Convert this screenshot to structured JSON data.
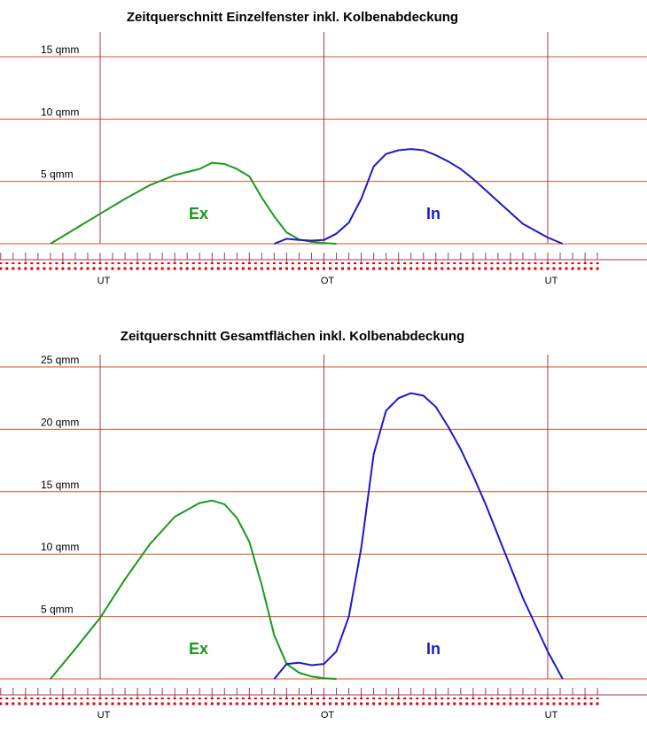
{
  "colors": {
    "grid_h": "#d9531f",
    "grid_v": "#a03a58",
    "axis_ticks": "#a03a58",
    "dots": "#e00000",
    "ex": "#1a9a1a",
    "in": "#1a1acc"
  },
  "chart_data": [
    {
      "type": "line",
      "title": "Zeitquerschnitt Einzelfenster inkl. Kolbenabdeckung",
      "ylim": [
        0,
        15
      ],
      "y_ticks": [
        {
          "value": 5,
          "label": "5 qmm"
        },
        {
          "value": 10,
          "label": "10 qmm"
        },
        {
          "value": 15,
          "label": "15 qmm"
        }
      ],
      "xlim": [
        -20,
        360
      ],
      "x_ticks": [
        {
          "value": 0,
          "label": "UT"
        },
        {
          "value": 180,
          "label": "OT"
        },
        {
          "value": 360,
          "label": "UT"
        }
      ],
      "series": [
        {
          "name": "Ex",
          "color": "#1a9a1a",
          "x": [
            -40,
            -20,
            0,
            20,
            40,
            60,
            80,
            90,
            100,
            110,
            120,
            130,
            140,
            150,
            160,
            170,
            180,
            190
          ],
          "y": [
            0,
            1.2,
            2.4,
            3.6,
            4.7,
            5.5,
            6.0,
            6.5,
            6.4,
            6.0,
            5.4,
            3.7,
            2.2,
            0.9,
            0.35,
            0.15,
            0.05,
            0
          ]
        },
        {
          "name": "In",
          "color": "#1a1acc",
          "x": [
            140,
            150,
            160,
            170,
            180,
            190,
            200,
            210,
            220,
            230,
            240,
            250,
            260,
            270,
            280,
            290,
            300,
            310,
            320,
            340,
            360,
            372
          ],
          "y": [
            0,
            0.4,
            0.3,
            0.25,
            0.3,
            0.8,
            1.7,
            3.6,
            6.2,
            7.2,
            7.5,
            7.6,
            7.5,
            7.1,
            6.6,
            6.0,
            5.2,
            4.3,
            3.4,
            1.6,
            0.5,
            0
          ]
        }
      ]
    },
    {
      "type": "line",
      "title": "Zeitquerschnitt Gesamtflächen inkl. Kolbenabdeckung",
      "ylim": [
        0,
        25
      ],
      "y_ticks": [
        {
          "value": 5,
          "label": "5 qmm"
        },
        {
          "value": 10,
          "label": "10 qmm"
        },
        {
          "value": 15,
          "label": "15 qmm"
        },
        {
          "value": 20,
          "label": "20 qmm"
        },
        {
          "value": 25,
          "label": "25 qmm"
        }
      ],
      "xlim": [
        -20,
        360
      ],
      "x_ticks": [
        {
          "value": 0,
          "label": "UT"
        },
        {
          "value": 180,
          "label": "OT"
        },
        {
          "value": 360,
          "label": "UT"
        }
      ],
      "series": [
        {
          "name": "Ex",
          "color": "#1a9a1a",
          "x": [
            -40,
            -20,
            0,
            20,
            40,
            60,
            80,
            90,
            100,
            110,
            120,
            130,
            140,
            150,
            160,
            170,
            180,
            190
          ],
          "y": [
            0,
            2.4,
            4.9,
            8.0,
            10.8,
            13.0,
            14.1,
            14.3,
            14.0,
            12.9,
            11.0,
            7.5,
            3.5,
            1.2,
            0.5,
            0.2,
            0.05,
            0
          ]
        },
        {
          "name": "In",
          "color": "#1a1acc",
          "x": [
            140,
            150,
            160,
            170,
            180,
            190,
            200,
            210,
            220,
            230,
            240,
            250,
            260,
            270,
            280,
            290,
            300,
            310,
            320,
            340,
            360,
            372
          ],
          "y": [
            0,
            1.2,
            1.3,
            1.1,
            1.2,
            2.2,
            5.0,
            10.5,
            18.0,
            21.5,
            22.5,
            22.9,
            22.7,
            21.8,
            20.2,
            18.4,
            16.3,
            14.0,
            11.5,
            6.5,
            2.2,
            0
          ]
        }
      ]
    }
  ]
}
